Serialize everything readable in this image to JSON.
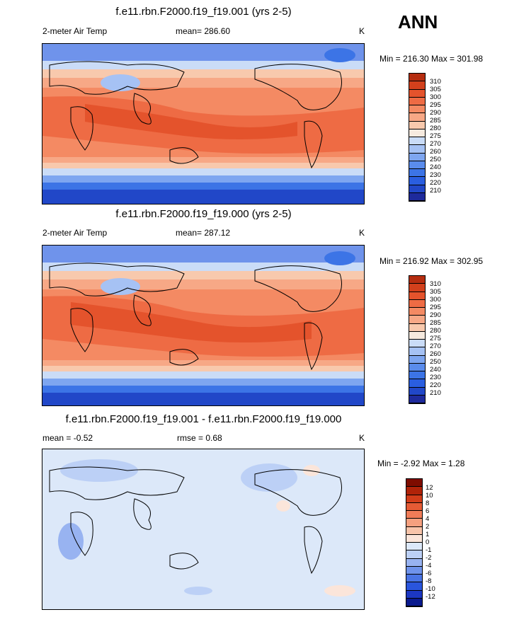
{
  "season": "ANN",
  "colors": {
    "warm_scale": [
      "#1e2a9c",
      "#2147c8",
      "#2a5ee0",
      "#3c74e6",
      "#5a8cec",
      "#7ea6f0",
      "#a6c2f4",
      "#cadcf7",
      "#f6eadf",
      "#f8c9ad",
      "#f7a886",
      "#f48a63",
      "#ee6b44",
      "#e4532c",
      "#d2401c",
      "#b52d10",
      "#8c1503"
    ],
    "diff_scale": [
      "#0a1a8e",
      "#1c37c2",
      "#2a55dd",
      "#4a74e4",
      "#6f93eb",
      "#98b3f1",
      "#bcd0f6",
      "#dce8f9",
      "#fbe5da",
      "#f8c4aa",
      "#f5a07f",
      "#f07c58",
      "#e55b35",
      "#d23d1a",
      "#b02309",
      "#7e0c00"
    ]
  },
  "panels": [
    {
      "id": "top",
      "title": "f.e11.rbn.F2000.f19_f19.001 (yrs 2-5)",
      "left_label": "2-meter Air Temp",
      "center_label": "mean= 286.60",
      "right_label": "K",
      "minmax": "Min = 216.30 Max = 301.98"
    },
    {
      "id": "middle",
      "title": "f.e11.rbn.F2000.f19_f19.000 (yrs 2-5)",
      "left_label": "2-meter Air Temp",
      "center_label": "mean= 287.12",
      "right_label": "K",
      "minmax": "Min = 216.92 Max = 302.95"
    },
    {
      "id": "diff",
      "title": "f.e11.rbn.F2000.f19_f19.001 - f.e11.rbn.F2000.f19_f19.000",
      "left_label": "mean =  -0.52",
      "center_label": "rmse =   0.68",
      "right_label": "K",
      "minmax": "Min =  -2.92 Max =   1.28"
    }
  ],
  "chart_data": [
    {
      "type": "heatmap",
      "title": "f.e11.rbn.F2000.f19_f19.001 (yrs 2-5)",
      "variable": "2-meter Air Temp",
      "units": "K",
      "mean": 286.6,
      "min": 216.3,
      "max": 301.98,
      "colorbar_levels": [
        310,
        305,
        300,
        295,
        290,
        285,
        280,
        275,
        270,
        260,
        250,
        240,
        230,
        220,
        210
      ]
    },
    {
      "type": "heatmap",
      "title": "f.e11.rbn.F2000.f19_f19.000 (yrs 2-5)",
      "variable": "2-meter Air Temp",
      "units": "K",
      "mean": 287.12,
      "min": 216.92,
      "max": 302.95,
      "colorbar_levels": [
        310,
        305,
        300,
        295,
        290,
        285,
        280,
        275,
        270,
        260,
        250,
        240,
        230,
        220,
        210
      ]
    },
    {
      "type": "heatmap",
      "title": "f.e11.rbn.F2000.f19_f19.001 - f.e11.rbn.F2000.f19_f19.000",
      "units": "K",
      "mean": -0.52,
      "rmse": 0.68,
      "min": -2.92,
      "max": 1.28,
      "colorbar_levels": [
        12,
        10,
        8,
        6,
        4,
        2,
        1,
        0,
        -1,
        -2,
        -4,
        -6,
        -8,
        -10,
        -12
      ]
    }
  ]
}
